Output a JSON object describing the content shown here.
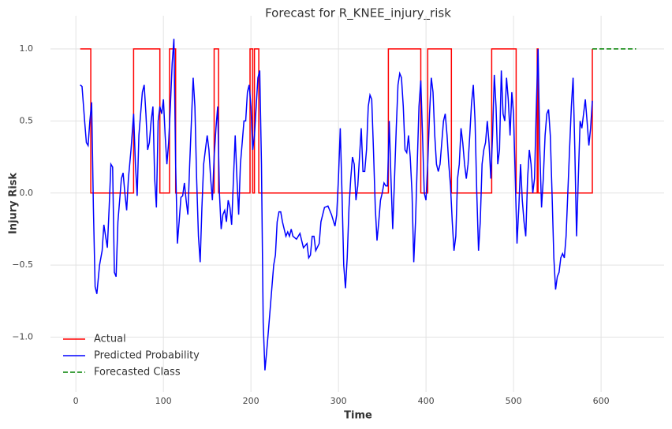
{
  "chart_data": {
    "type": "line",
    "title": "Forecast for R_KNEE_injury_risk",
    "xlabel": "Time",
    "ylabel": "Injury Risk",
    "xlim": [
      -29,
      672
    ],
    "ylim": [
      -1.38,
      1.23
    ],
    "xticks": [
      0,
      100,
      200,
      300,
      400,
      500,
      600
    ],
    "yticks": [
      {
        "value": -1,
        "label": "−1.0"
      },
      {
        "value": -0.5,
        "label": "−0.5"
      },
      {
        "value": 0,
        "label": "0.0"
      },
      0.5,
      {
        "value": 1,
        "label": "1.0"
      }
    ],
    "grid": true,
    "legend": "lower left",
    "series": [
      {
        "name": "Actual",
        "color": "#ff0000",
        "linestyle": "solid",
        "x": [
          5,
          17,
          17,
          66,
          66,
          96,
          96,
          107,
          107,
          114,
          114,
          158,
          158,
          163,
          163,
          199,
          199,
          202,
          202,
          204,
          204,
          209,
          209,
          357,
          357,
          394,
          394,
          402,
          402,
          429,
          429,
          475,
          475,
          503,
          503,
          527,
          527,
          528,
          528,
          590,
          590
        ],
        "values": [
          1,
          1,
          0,
          0,
          1,
          1,
          0,
          0,
          1,
          1,
          0,
          0,
          1,
          1,
          0,
          0,
          1,
          1,
          0,
          0,
          1,
          1,
          0,
          0,
          1,
          1,
          0,
          0,
          1,
          1,
          0,
          0,
          1,
          1,
          0,
          0,
          1,
          1,
          0,
          0,
          1
        ]
      },
      {
        "name": "Predicted Probability",
        "color": "#0000ff",
        "linestyle": "solid",
        "x": [
          5,
          7,
          10,
          12,
          14,
          16,
          18,
          20,
          22,
          24,
          27,
          30,
          32,
          34,
          36,
          38,
          40,
          42,
          44,
          46,
          48,
          52,
          54,
          56,
          58,
          60,
          63,
          66,
          68,
          70,
          72,
          76,
          78,
          80,
          82,
          84,
          86,
          88,
          90,
          92,
          94,
          96,
          98,
          100,
          102,
          104,
          106,
          108,
          110,
          112,
          114,
          116,
          118,
          120,
          122,
          124,
          126,
          128,
          130,
          132,
          134,
          136,
          138,
          140,
          142,
          144,
          146,
          148,
          150,
          152,
          154,
          156,
          158,
          160,
          162,
          164,
          166,
          168,
          170,
          172,
          174,
          176,
          178,
          180,
          182,
          184,
          186,
          188,
          190,
          192,
          194,
          196,
          198,
          200,
          202,
          204,
          206,
          208,
          210,
          212,
          214,
          216,
          218,
          220,
          222,
          224,
          226,
          228,
          230,
          232,
          234,
          236,
          238,
          240,
          242,
          244,
          246,
          248,
          252,
          256,
          260,
          264,
          266,
          268,
          270,
          272,
          274,
          278,
          280,
          284,
          288,
          292,
          296,
          298,
          300,
          302,
          304,
          306,
          308,
          310,
          312,
          314,
          316,
          318,
          320,
          322,
          324,
          326,
          328,
          330,
          332,
          334,
          336,
          338,
          340,
          342,
          344,
          346,
          348,
          350,
          352,
          354,
          356,
          358,
          360,
          362,
          364,
          366,
          368,
          370,
          372,
          374,
          376,
          378,
          380,
          382,
          384,
          386,
          388,
          390,
          392,
          394,
          396,
          398,
          400,
          402,
          404,
          406,
          408,
          410,
          412,
          414,
          416,
          418,
          420,
          422,
          424,
          426,
          428,
          430,
          432,
          434,
          436,
          438,
          440,
          442,
          444,
          446,
          448,
          450,
          452,
          454,
          456,
          458,
          460,
          462,
          464,
          466,
          468,
          470,
          472,
          474,
          476,
          478,
          480,
          482,
          484,
          486,
          488,
          490,
          492,
          494,
          496,
          498,
          500,
          502,
          504,
          506,
          508,
          510,
          512,
          514,
          516,
          518,
          520,
          522,
          524,
          526,
          528,
          530,
          532,
          534,
          536,
          538,
          540,
          542,
          544,
          546,
          548,
          550,
          552,
          554,
          556,
          558,
          560,
          562,
          564,
          566,
          568,
          570,
          572,
          574,
          576,
          578,
          580,
          582,
          584,
          586,
          588,
          590
        ],
        "values": [
          0.75,
          0.74,
          0.5,
          0.35,
          0.33,
          0.5,
          0.63,
          -0.1,
          -0.65,
          -0.7,
          -0.5,
          -0.4,
          -0.22,
          -0.3,
          -0.38,
          -0.1,
          0.2,
          0.18,
          -0.55,
          -0.58,
          -0.2,
          0.1,
          0.14,
          0.0,
          -0.12,
          0.1,
          0.3,
          0.55,
          0.2,
          -0.02,
          0.4,
          0.7,
          0.75,
          0.55,
          0.3,
          0.35,
          0.5,
          0.6,
          0.1,
          -0.1,
          0.5,
          0.6,
          0.55,
          0.65,
          0.4,
          0.2,
          0.35,
          0.6,
          0.9,
          1.07,
          0.2,
          -0.35,
          -0.2,
          -0.03,
          -0.02,
          0.07,
          -0.05,
          -0.15,
          0.2,
          0.5,
          0.8,
          0.6,
          0.1,
          -0.3,
          -0.48,
          -0.1,
          0.2,
          0.3,
          0.4,
          0.3,
          0.1,
          -0.05,
          0.25,
          0.45,
          0.6,
          0.0,
          -0.25,
          -0.15,
          -0.12,
          -0.2,
          -0.05,
          -0.1,
          -0.22,
          0.1,
          0.4,
          0.1,
          -0.15,
          0.2,
          0.35,
          0.5,
          0.5,
          0.7,
          0.75,
          0.6,
          0.3,
          0.4,
          0.6,
          0.8,
          0.85,
          0.2,
          -0.9,
          -1.23,
          -1.1,
          -0.95,
          -0.8,
          -0.65,
          -0.5,
          -0.43,
          -0.2,
          -0.13,
          -0.13,
          -0.2,
          -0.25,
          -0.3,
          -0.27,
          -0.3,
          -0.25,
          -0.3,
          -0.32,
          -0.28,
          -0.38,
          -0.35,
          -0.45,
          -0.43,
          -0.3,
          -0.3,
          -0.4,
          -0.35,
          -0.2,
          -0.1,
          -0.09,
          -0.15,
          -0.23,
          -0.15,
          0.1,
          0.45,
          0.0,
          -0.5,
          -0.66,
          -0.45,
          -0.1,
          0.1,
          0.25,
          0.2,
          -0.05,
          0.05,
          0.25,
          0.45,
          0.15,
          0.15,
          0.3,
          0.6,
          0.68,
          0.65,
          0.3,
          -0.1,
          -0.33,
          -0.2,
          -0.05,
          0.0,
          0.07,
          0.05,
          0.05,
          0.5,
          0.1,
          -0.25,
          0.1,
          0.45,
          0.75,
          0.83,
          0.8,
          0.6,
          0.3,
          0.28,
          0.4,
          0.25,
          0.0,
          -0.48,
          -0.2,
          0.2,
          0.6,
          0.78,
          0.4,
          0.0,
          -0.05,
          0.2,
          0.55,
          0.8,
          0.7,
          0.4,
          0.2,
          0.15,
          0.2,
          0.35,
          0.5,
          0.55,
          0.4,
          0.2,
          0.05,
          -0.2,
          -0.4,
          -0.3,
          0.1,
          0.2,
          0.45,
          0.35,
          0.2,
          0.1,
          0.2,
          0.4,
          0.62,
          0.75,
          0.5,
          0.0,
          -0.4,
          -0.2,
          0.2,
          0.3,
          0.35,
          0.5,
          0.35,
          0.1,
          0.4,
          0.82,
          0.6,
          0.2,
          0.3,
          0.85,
          0.55,
          0.5,
          0.8,
          0.65,
          0.4,
          0.7,
          0.55,
          0.1,
          -0.35,
          -0.1,
          0.2,
          -0.05,
          -0.2,
          -0.3,
          0.1,
          0.3,
          0.2,
          0.0,
          0.1,
          0.6,
          1.0,
          0.3,
          -0.1,
          0.1,
          0.4,
          0.55,
          0.58,
          0.4,
          0.0,
          -0.45,
          -0.67,
          -0.58,
          -0.55,
          -0.45,
          -0.42,
          -0.45,
          -0.3,
          0.0,
          0.3,
          0.6,
          0.8,
          0.3,
          -0.3,
          0.1,
          0.5,
          0.45,
          0.55,
          0.65,
          0.5,
          0.33,
          0.45,
          0.64
        ]
      },
      {
        "name": "Forecasted Class",
        "color": "#008000",
        "linestyle": "dashed",
        "x": [
          590,
          640
        ],
        "values": [
          1,
          1
        ]
      }
    ]
  }
}
